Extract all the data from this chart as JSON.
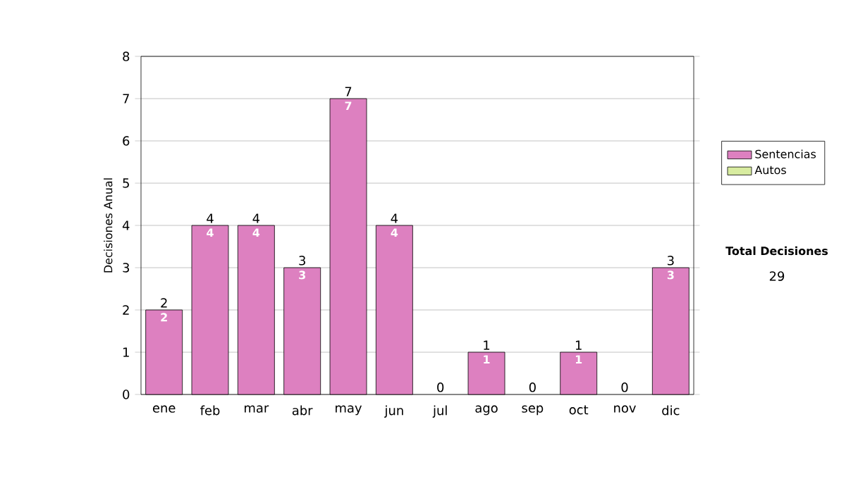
{
  "chart_data": {
    "type": "bar",
    "stacked": true,
    "ylabel": "Decisiones Anual",
    "categories": [
      "ene",
      "feb",
      "mar",
      "abr",
      "may",
      "jun",
      "jul",
      "ago",
      "sep",
      "oct",
      "nov",
      "dic"
    ],
    "series": [
      {
        "name": "Sentencias",
        "color": "#dd80c0",
        "values": [
          2,
          4,
          4,
          3,
          7,
          4,
          0,
          1,
          0,
          1,
          0,
          3
        ],
        "value_labels": [
          "2",
          "4",
          "4",
          "3",
          "7",
          "4",
          null,
          "1",
          null,
          "1",
          null,
          "3"
        ]
      },
      {
        "name": "Autos",
        "color": "#d8eca0",
        "values": [
          0,
          0,
          0,
          0,
          0,
          0,
          0,
          0,
          0,
          0,
          0,
          0
        ]
      }
    ],
    "totals": [
      "2",
      "4",
      "4",
      "3",
      "7",
      "4",
      "0",
      "1",
      "0",
      "1",
      "0",
      "3"
    ],
    "ylim": [
      0,
      8
    ],
    "yticks": [
      0,
      1,
      2,
      3,
      4,
      5,
      6,
      7,
      8
    ],
    "grid": "y",
    "legend": "right",
    "annotations": [
      "Total Decisiones",
      "29"
    ]
  }
}
